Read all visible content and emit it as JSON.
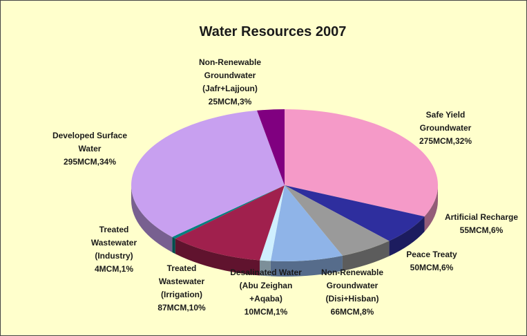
{
  "chart_data": {
    "type": "pie",
    "title": "Water Resources 2007",
    "categories": [
      "Safe Yield\nGroundwater",
      "Artificial Recharge",
      "Peace Treaty",
      "Non-Renewable\nGroundwater\n(Disi+Hisban)",
      "Desalinated Water\n(Abu Zeighan\n+Aqaba)",
      "Treated\nWastewater\n(Irrigation)",
      "Treated\nWastewater\n(Industry)",
      "Developed Surface\nWater",
      "Non-Renewable\nGroundwater\n(Jafr+Lajjoun)"
    ],
    "values": [
      275,
      55,
      50,
      66,
      10,
      87,
      4,
      295,
      25
    ],
    "value_labels": [
      "275MCM,32%",
      "55MCM,6%",
      "50MCM,6%",
      "66MCM,8%",
      "10MCM,1%",
      "87MCM,10%",
      "4MCM,1%",
      "295MCM,34%",
      "25MCM,3%"
    ],
    "colors": [
      "#f59ac8",
      "#2e2e9e",
      "#9a9a9a",
      "#8fb4e8",
      "#cfefff",
      "#a0204d",
      "#008080",
      "#c8a0f0",
      "#800080"
    ]
  }
}
